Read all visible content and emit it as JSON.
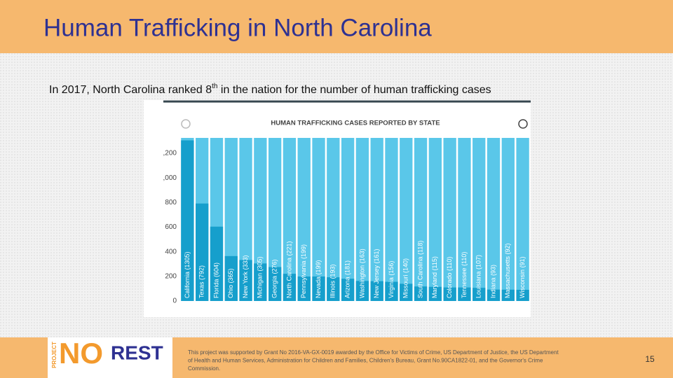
{
  "title": "Human Trafficking in North Carolina",
  "intro": [
    "In 2017, North Carolina ranked 8",
    "th",
    " in the nation for the number of human trafficking cases"
  ],
  "chart_data": {
    "type": "bar",
    "title": "HUMAN TRAFFICKING CASES REPORTED BY STATE",
    "categories": [
      "California (1305)",
      "Texas (792)",
      "Florida (604)",
      "Ohio (365)",
      "New York (333)",
      "Michigan (305)",
      "Georgia (276)",
      "North Carolina (221)",
      "Pennsylvania (199)",
      "Nevada (199)",
      "Illinois (193)",
      "Arizona (181)",
      "Washington (163)",
      "New Jersey (161)",
      "Virginia (156)",
      "Missouri (140)",
      "South Carolina (118)",
      "Maryland (115)",
      "Colorado (110)",
      "Tennessee (110)",
      "Louisiana (107)",
      "Indiana (93)",
      "Massachusetts (92)",
      "Wisconsin (91)"
    ],
    "values": [
      1305,
      792,
      604,
      365,
      333,
      305,
      276,
      221,
      199,
      199,
      193,
      181,
      163,
      161,
      156,
      140,
      118,
      115,
      110,
      110,
      107,
      93,
      92,
      91
    ],
    "color": "#169fcc",
    "background_color": "#5ac7e9",
    "ylim": [
      0,
      1325
    ],
    "yticks": [
      0,
      200,
      400,
      600,
      800,
      {
        "value": 1000,
        "label": ",000"
      },
      {
        "value": 1200,
        "label": ",200"
      }
    ]
  },
  "logo": {
    "project": "PROJECT",
    "no": "NO",
    "rest": "REST"
  },
  "footer": {
    "lines": [
      "This project was supported by Grant No 2016-VA-GX-0019 awarded by the Office for Victims of Crime, US Department of Justice, the US Department",
      "of Health and Human Services, Administration for Children and Families, Children's Bureau, Grant No.90CA1822-01, and the Governor's Crime",
      "Commission."
    ],
    "page": "15"
  }
}
